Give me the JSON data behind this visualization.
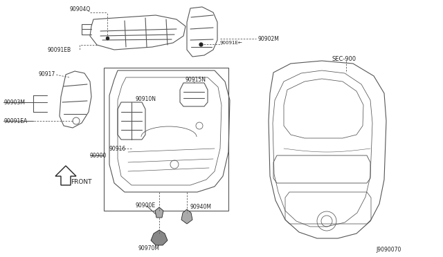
{
  "background_color": "#ffffff",
  "diagram_id": "J9090070",
  "line_color": "#555555",
  "dark_color": "#222222",
  "fig_w": 6.4,
  "fig_h": 3.72,
  "dpi": 100,
  "xlim": [
    0,
    640
  ],
  "ylim": [
    0,
    372
  ]
}
